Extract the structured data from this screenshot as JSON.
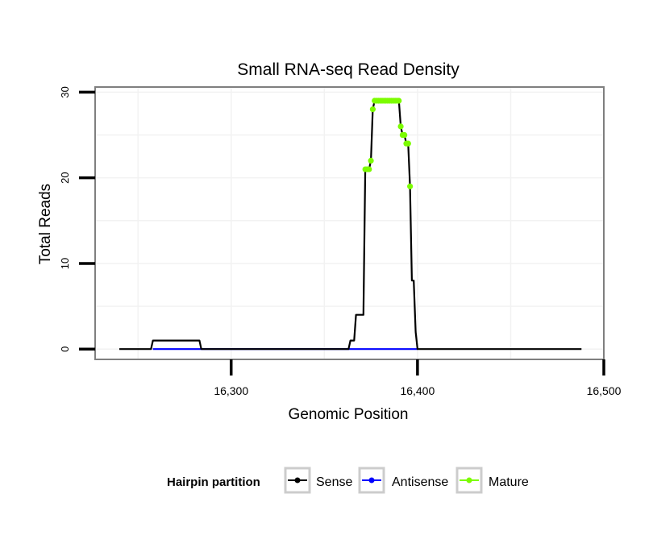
{
  "chart_data": {
    "type": "line",
    "title": "Small RNA-seq Read Density",
    "xlabel": "Genomic Position",
    "ylabel": "Total Reads",
    "xlim": [
      16227,
      16500
    ],
    "ylim": [
      -1.2,
      30.6
    ],
    "x_ticks": [
      16300,
      16400,
      16500
    ],
    "x_tick_labels": [
      "16,300",
      "16,400",
      "16,500"
    ],
    "y_ticks": [
      0,
      10,
      20,
      30
    ],
    "y_tick_labels": [
      "0",
      "10",
      "20",
      "30"
    ],
    "grid": true,
    "legend_position": "bottom",
    "legend_title": "Hairpin partition",
    "series": [
      {
        "name": "Sense",
        "color": "#000000",
        "markers": false,
        "x": [
          16240,
          16257,
          16258,
          16283,
          16284,
          16363,
          16364,
          16366,
          16367,
          16371,
          16372,
          16373,
          16374,
          16375,
          16376,
          16377,
          16378,
          16390,
          16391,
          16392,
          16393,
          16394,
          16395,
          16396,
          16397,
          16398,
          16399,
          16400,
          16401,
          16488
        ],
        "y": [
          0,
          0,
          1,
          1,
          0,
          0,
          1,
          1,
          4,
          4,
          21,
          21,
          21,
          22,
          28,
          29,
          29,
          29,
          26,
          25,
          25,
          24,
          24,
          19,
          8,
          8,
          2,
          0,
          0,
          0
        ]
      },
      {
        "name": "Antisense",
        "color": "#0000ff",
        "markers": false,
        "x": [
          16258,
          16283,
          16364,
          16400
        ],
        "y": [
          0,
          0,
          0,
          0
        ]
      },
      {
        "name": "Mature",
        "color": "#7cfc00",
        "markers": true,
        "x": [
          16372,
          16373,
          16374,
          16375,
          16376,
          16377,
          16378,
          16379,
          16380,
          16381,
          16382,
          16383,
          16384,
          16385,
          16386,
          16387,
          16388,
          16389,
          16390,
          16391,
          16392,
          16393,
          16394,
          16395,
          16396
        ],
        "y": [
          21,
          21,
          21,
          22,
          28,
          29,
          29,
          29,
          29,
          29,
          29,
          29,
          29,
          29,
          29,
          29,
          29,
          29,
          29,
          26,
          25,
          25,
          24,
          24,
          19
        ]
      }
    ]
  }
}
